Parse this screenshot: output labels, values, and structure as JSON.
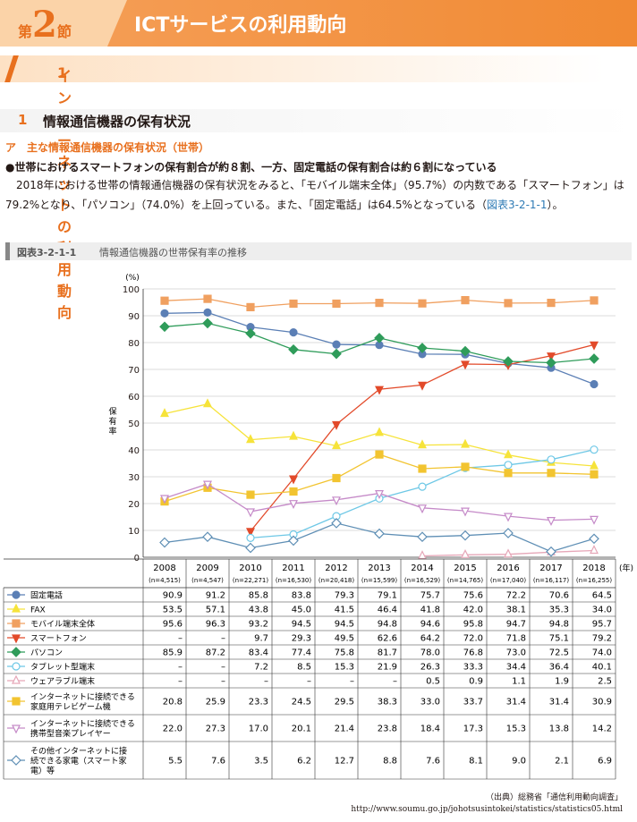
{
  "header": {
    "section_prefix": "第",
    "section_number": "2",
    "section_suffix": "節",
    "title": "ICTサービスの利用動向"
  },
  "subsection": {
    "number": "1",
    "title": "インターネットの利用動向"
  },
  "heading": {
    "number": "1",
    "title": "情報通信機器の保有状況"
  },
  "subheading": "ア　主な情報通信機器の保有状況（世帯）",
  "bullet": "●世帯におけるスマートフォンの保有割合が約８割、一方、固定電話の保有割合は約６割になっている",
  "paragraph": {
    "text": "2018年における世帯の情報通信機器の保有状況をみると、「モバイル端末全体」（95.7%）の内数である「スマートフォン」は79.2%となり、「パソコン」（74.0%）を上回っている。また、「固定電話」は64.5%となっている（",
    "ref": "図表3-2-1-1",
    "end": "）。"
  },
  "figure": {
    "id": "図表3-2-1-1",
    "caption": "情報通信機器の世帯保有率の推移"
  },
  "chart_data": {
    "type": "line",
    "yunit": "(%)",
    "ylabel": "保有率",
    "ylim": [
      0,
      100
    ],
    "yticks": [
      0,
      10,
      20,
      30,
      40,
      50,
      60,
      70,
      80,
      90,
      100
    ],
    "xunit": "(年)",
    "x": [
      "2008",
      "2009",
      "2010",
      "2011",
      "2012",
      "2013",
      "2014",
      "2015",
      "2016",
      "2017",
      "2018"
    ],
    "n": [
      "(n=4,515)",
      "(n=4,547)",
      "(n=22,271)",
      "(n=16,530)",
      "(n=20,418)",
      "(n=15,599)",
      "(n=16,529)",
      "(n=14,765)",
      "(n=17,040)",
      "(n=16,117)",
      "(n=16,255)"
    ],
    "series": [
      {
        "name": "固定電話",
        "color": "#5b7fb5",
        "marker": "circle",
        "values": [
          90.9,
          91.2,
          85.8,
          83.8,
          79.3,
          79.1,
          75.7,
          75.6,
          72.2,
          70.6,
          64.5
        ]
      },
      {
        "name": "FAX",
        "color": "#f6e33a",
        "marker": "triangle-up",
        "values": [
          53.5,
          57.1,
          43.8,
          45.0,
          41.5,
          46.4,
          41.8,
          42.0,
          38.1,
          35.3,
          34.0
        ]
      },
      {
        "name": "モバイル端末全体",
        "color": "#f0a060",
        "marker": "square",
        "values": [
          95.6,
          96.3,
          93.2,
          94.5,
          94.5,
          94.8,
          94.6,
          95.8,
          94.7,
          94.8,
          95.7
        ]
      },
      {
        "name": "スマートフォン",
        "color": "#e24a2a",
        "marker": "triangle-down",
        "values": [
          null,
          null,
          9.7,
          29.3,
          49.5,
          62.6,
          64.2,
          72.0,
          71.8,
          75.1,
          79.2
        ]
      },
      {
        "name": "パソコン",
        "color": "#2f9c5a",
        "marker": "diamond",
        "values": [
          85.9,
          87.2,
          83.4,
          77.4,
          75.8,
          81.7,
          78.0,
          76.8,
          73.0,
          72.5,
          74.0
        ]
      },
      {
        "name": "タブレット型端末",
        "color": "#6ec8e6",
        "marker": "circle-open",
        "values": [
          null,
          null,
          7.2,
          8.5,
          15.3,
          21.9,
          26.3,
          33.3,
          34.4,
          36.4,
          40.1
        ]
      },
      {
        "name": "ウェアラブル端末",
        "color": "#e6a7b8",
        "marker": "triangle-up-open",
        "values": [
          null,
          null,
          null,
          null,
          null,
          null,
          0.5,
          0.9,
          1.1,
          1.9,
          2.5
        ]
      },
      {
        "name": "インターネットに接続できる家庭用テレビゲーム機",
        "lines": [
          "インターネットに接続できる",
          "家庭用テレビゲーム機"
        ],
        "color": "#f2c430",
        "marker": "square",
        "values": [
          20.8,
          25.9,
          23.3,
          24.5,
          29.5,
          38.3,
          33.0,
          33.7,
          31.4,
          31.4,
          30.9
        ]
      },
      {
        "name": "インターネットに接続できる携帯型音楽プレイヤー",
        "lines": [
          "インターネットに接続できる",
          "携帯型音楽プレイヤー"
        ],
        "color": "#c58ac8",
        "marker": "triangle-down-open",
        "values": [
          22.0,
          27.3,
          17.0,
          20.1,
          21.4,
          23.8,
          18.4,
          17.3,
          15.3,
          13.8,
          14.2
        ]
      },
      {
        "name": "その他インターネットに接続できる家電（スマート家電）等",
        "lines": [
          "その他インターネットに接",
          "続できる家電（スマート家",
          "電）等"
        ],
        "color": "#5f8fb5",
        "marker": "diamond-open",
        "values": [
          5.5,
          7.6,
          3.5,
          6.2,
          12.7,
          8.8,
          7.6,
          8.1,
          9.0,
          2.1,
          6.9
        ]
      }
    ],
    "missing_label": "–"
  },
  "source": {
    "label": "（出典）総務省「通信利用動向調査」",
    "url": "http://www.soumu.go.jp/johotsusintokei/statistics/statistics05.html"
  }
}
